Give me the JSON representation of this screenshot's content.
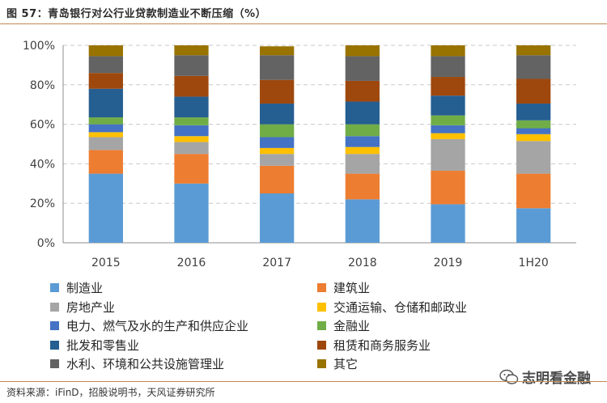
{
  "title": "图 57：青岛银行对公行业贷款制造业不断压缩（%）",
  "source": "资料来源：iFinD，招股说明书，天风证券研究所",
  "watermark": "志明看金融",
  "watermark_icon": "wechat-icon",
  "chart_data": {
    "type": "bar",
    "stacked": true,
    "categories": [
      "2015",
      "2016",
      "2017",
      "2018",
      "2019",
      "1H20"
    ],
    "ylim": [
      0,
      100
    ],
    "yticks": [
      0,
      20,
      40,
      60,
      80,
      100
    ],
    "ytick_labels": [
      "0%",
      "20%",
      "40%",
      "60%",
      "80%",
      "100%"
    ],
    "grid": true,
    "legend_position": "bottom",
    "series": [
      {
        "name": "制造业",
        "color": "#5B9BD5",
        "values": [
          35,
          30,
          25,
          22,
          19.5,
          17.5
        ]
      },
      {
        "name": "建筑业",
        "color": "#ED7D31",
        "values": [
          12,
          15,
          14,
          13,
          17,
          17.5
        ]
      },
      {
        "name": "房地产业",
        "color": "#A5A5A5",
        "values": [
          6.5,
          6,
          6,
          10,
          16,
          16.5
        ]
      },
      {
        "name": "交通运输、仓储和邮政业",
        "color": "#FFC000",
        "values": [
          2.5,
          3,
          3,
          3.5,
          3,
          3.5
        ]
      },
      {
        "name": "电力、燃气及水的生产和供应企业",
        "color": "#4472C4",
        "values": [
          4,
          5.5,
          5.5,
          5.5,
          4,
          3
        ]
      },
      {
        "name": "金融业",
        "color": "#70AD47",
        "values": [
          3.5,
          4,
          6.5,
          6,
          5,
          4
        ]
      },
      {
        "name": "批发和零售业",
        "color": "#255E91",
        "values": [
          14.5,
          10.5,
          10.5,
          11.5,
          10,
          8.5
        ]
      },
      {
        "name": "租赁和商务服务业",
        "color": "#9E480E",
        "values": [
          8,
          10.5,
          12,
          10.5,
          9.5,
          12.5
        ]
      },
      {
        "name": "水利、环境和公共设施管理业",
        "color": "#636363",
        "values": [
          8.5,
          10.5,
          12.5,
          12.5,
          10.5,
          12
        ]
      },
      {
        "name": "其它",
        "color": "#997300",
        "values": [
          5.5,
          5,
          4.5,
          5.5,
          5.5,
          5
        ]
      }
    ]
  }
}
